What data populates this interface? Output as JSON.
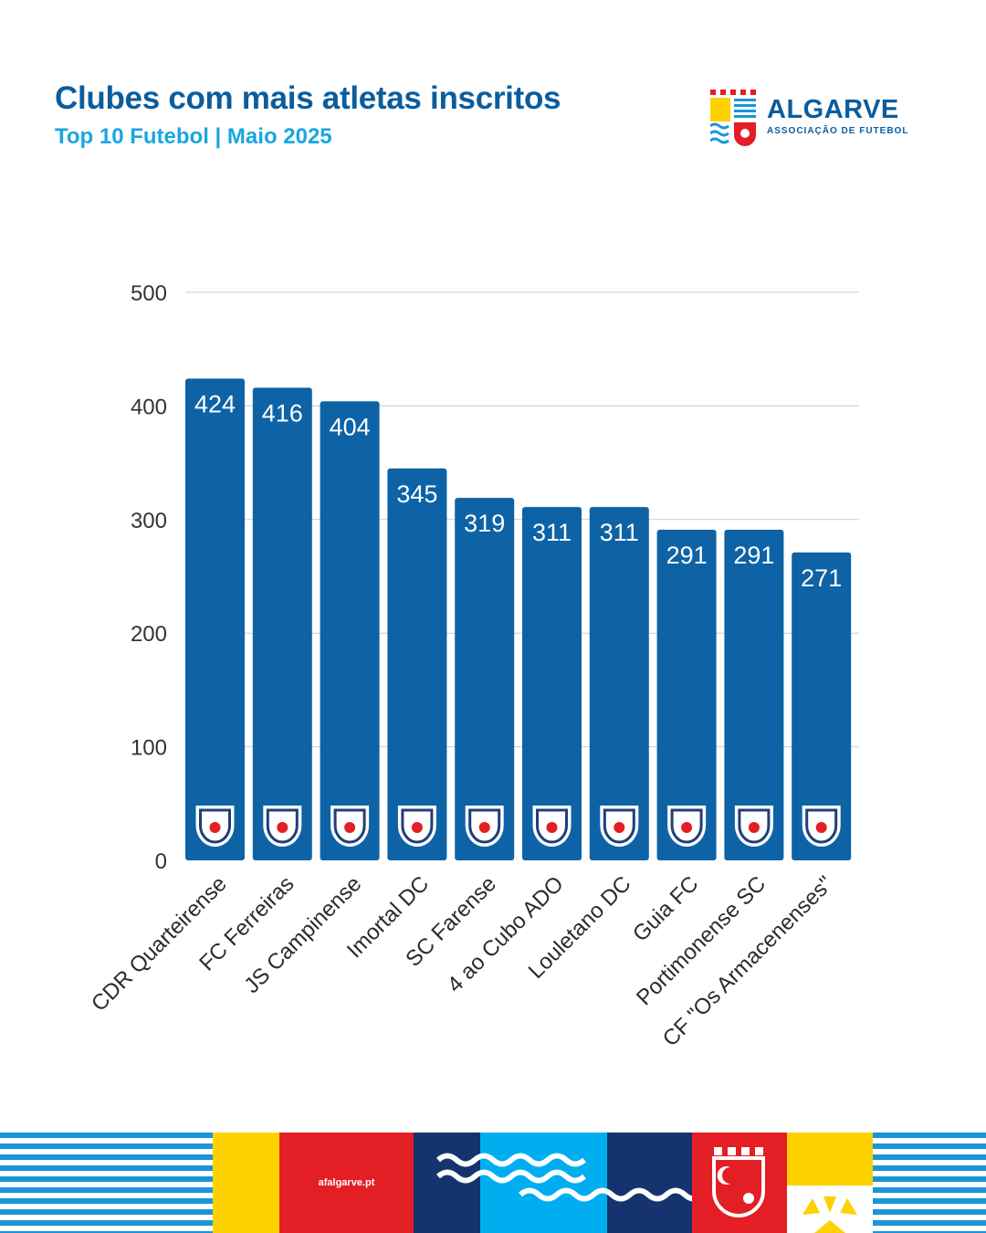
{
  "header": {
    "title": "Clubes com mais atletas inscritos",
    "subtitle": "Top 10 Futebol | Maio 2025"
  },
  "logo": {
    "name": "ALGARVE",
    "tagline": "ASSOCIAÇÃO DE FUTEBOL"
  },
  "footer": {
    "url": "afalgarve.pt"
  },
  "colors": {
    "bar": "#0d63a5",
    "title": "#0a5d9e",
    "subtitle": "#19a6e2",
    "grid": "#cccccc",
    "footer_yellow": "#fdd200",
    "footer_red": "#e31e24",
    "footer_navy": "#15336e",
    "footer_cyan": "#00aeef",
    "footer_blue": "#1a95d8"
  },
  "chart_data": {
    "type": "bar",
    "categories": [
      "CDR Quarteirense",
      "FC Ferreiras",
      "JS Campinense",
      "Imortal DC",
      "SC Farense",
      "4 ao Cubo ADO",
      "Louletano DC",
      "Guia FC",
      "Portimonense SC",
      "CF \"Os Armacenenses\""
    ],
    "values": [
      424,
      416,
      404,
      345,
      319,
      311,
      311,
      291,
      291,
      271
    ],
    "title": "Clubes com mais atletas inscritos",
    "subtitle": "Top 10 Futebol | Maio 2025",
    "xlabel": "",
    "ylabel": "",
    "ylim": [
      0,
      500
    ],
    "yticks": [
      0,
      100,
      200,
      300,
      400,
      500
    ],
    "grid": true,
    "legend": "none",
    "data_labels": true,
    "badge_icons": [
      "cdr-quarteirense-crest-icon",
      "fc-ferreiras-crest-icon",
      "js-campinense-crest-icon",
      "imortal-dc-crest-icon",
      "sc-farense-crest-icon",
      "4-ao-cubo-ado-crest-icon",
      "louletano-dc-crest-icon",
      "guia-fc-crest-icon",
      "portimonense-sc-crest-icon",
      "cf-os-armacenenses-crest-icon"
    ]
  }
}
